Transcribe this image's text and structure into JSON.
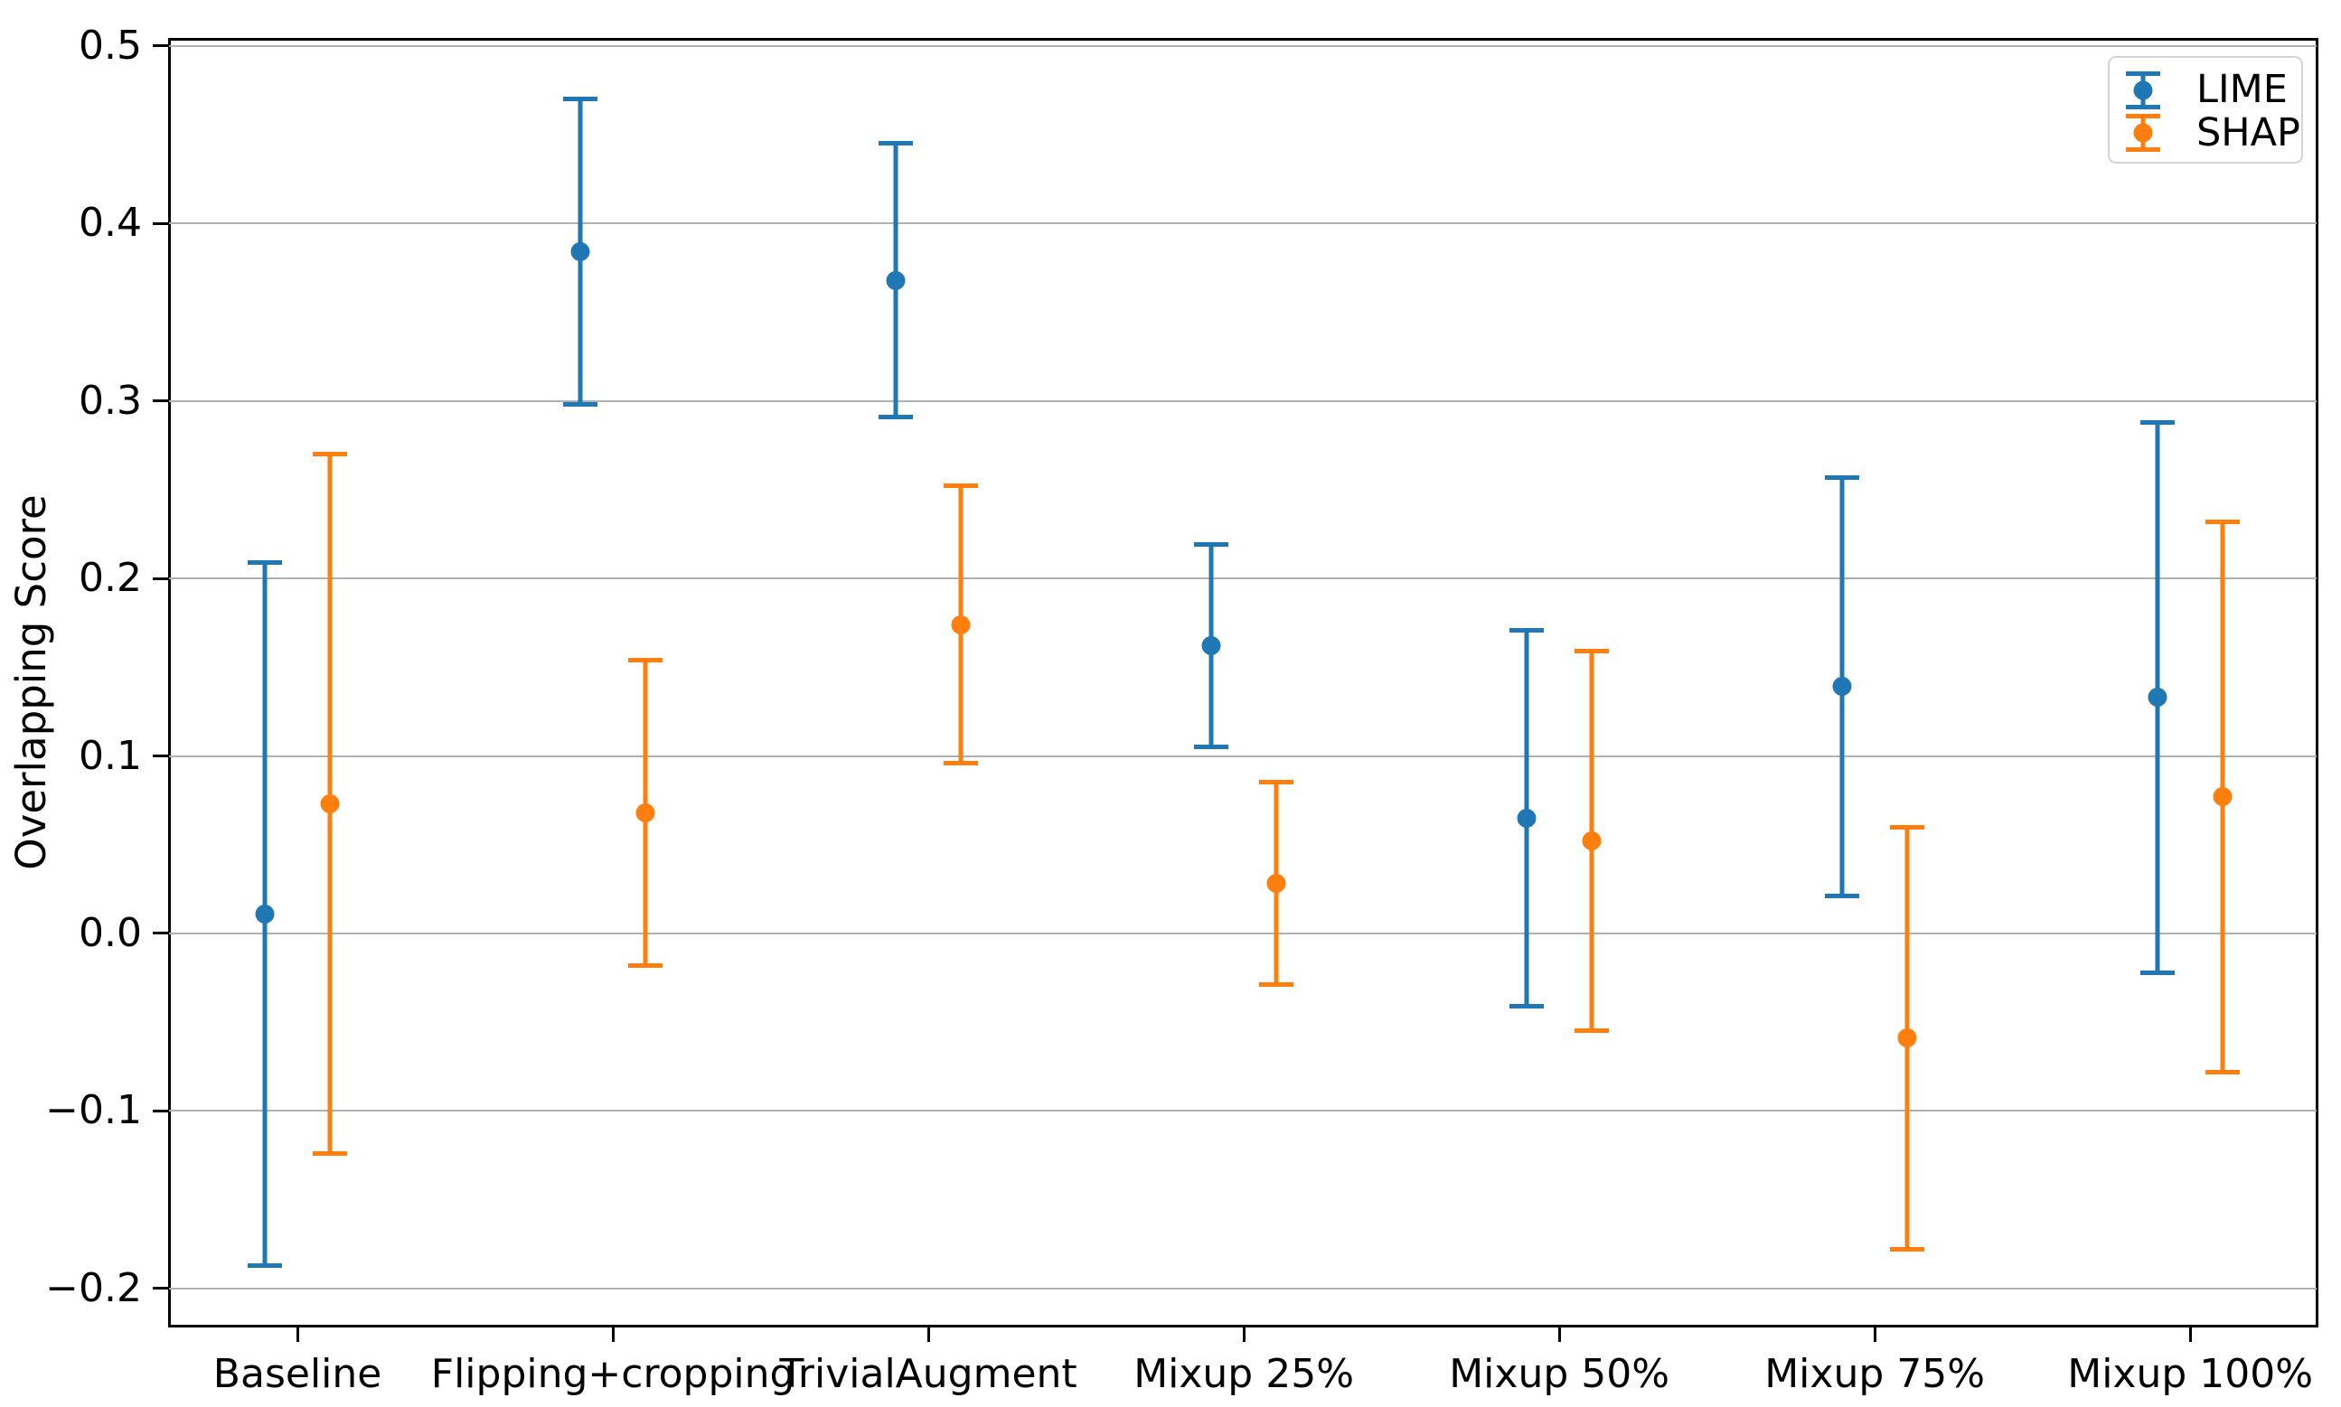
{
  "chart_data": {
    "type": "scatter",
    "subtype": "errorbar-points",
    "title": "",
    "xlabel": "",
    "ylabel": "Overlapping Score",
    "categories": [
      "Baseline",
      "Flipping+cropping",
      "TrivialAugment",
      "Mixup 25%",
      "Mixup 50%",
      "Mixup 75%",
      "Mixup 100%"
    ],
    "series": [
      {
        "name": "LIME",
        "color": "#1f77b4",
        "values": [
          0.011,
          0.384,
          0.368,
          0.162,
          0.065,
          0.139,
          0.133
        ],
        "errors": [
          0.198,
          0.086,
          0.077,
          0.057,
          0.106,
          0.118,
          0.155
        ]
      },
      {
        "name": "SHAP",
        "color": "#ff7f0e",
        "values": [
          0.073,
          0.068,
          0.174,
          0.028,
          0.052,
          -0.059,
          0.077
        ],
        "errors": [
          0.197,
          0.086,
          0.078,
          0.057,
          0.107,
          0.119,
          0.155
        ]
      }
    ],
    "ytick_labels": [
      "0.5",
      "0.4",
      "0.3",
      "0.2",
      "0.1",
      "0.0",
      "−0.1",
      "−0.2"
    ],
    "ytick_values": [
      0.5,
      0.4,
      0.3,
      0.2,
      0.1,
      0.0,
      -0.1,
      -0.2
    ],
    "ylim": [
      -0.221,
      0.504
    ],
    "grid": "horizontal",
    "grid_color": "#b0b0b0",
    "background_color": "#ffffff",
    "legend": {
      "position": "upper right",
      "entries": [
        "LIME",
        "SHAP"
      ]
    }
  }
}
